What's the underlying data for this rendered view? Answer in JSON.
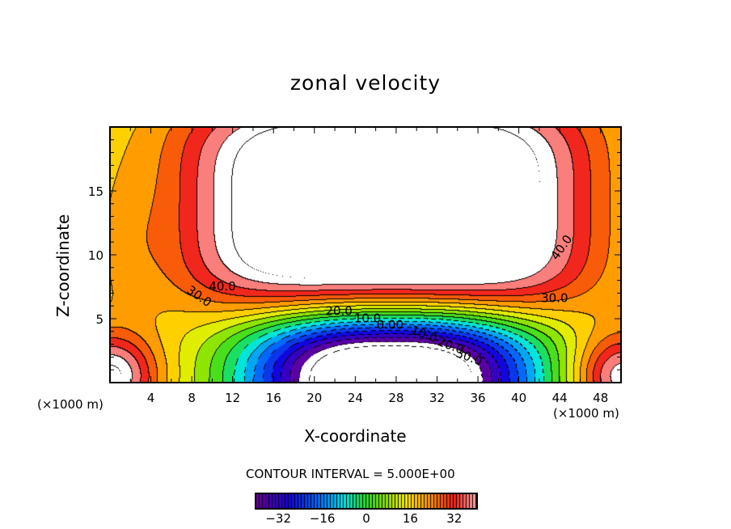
{
  "chart_data": {
    "type": "heatmap",
    "subtype": "filled-contour",
    "title": "zonal velocity",
    "xlabel": "X-coordinate",
    "ylabel": "Z-coordinate",
    "x_unit": "(×1000 m)",
    "z_unit": "(×1000 m)",
    "xlim": [
      0,
      50
    ],
    "ylim": [
      0,
      20
    ],
    "xticks": [
      4,
      8,
      12,
      16,
      20,
      24,
      28,
      32,
      36,
      40,
      44,
      48
    ],
    "xtick_labels": [
      "4",
      "8",
      "12",
      "16",
      "20",
      "24",
      "28",
      "32",
      "36",
      "40",
      "44",
      "48"
    ],
    "yticks": [
      5,
      10,
      15
    ],
    "ytick_labels": [
      "5",
      "10",
      "15"
    ],
    "contour_interval_text": "CONTOUR INTERVAL = 5.000E+00",
    "contour_interval": 5,
    "color_range": [
      -40,
      40
    ],
    "colorbar_ticks": [
      -32,
      -16,
      0,
      16,
      32
    ],
    "colorbar_labels": [
      "−32",
      "−16",
      "0",
      "16",
      "32"
    ],
    "contour_labels": [
      {
        "text": "40.0",
        "x": 11.0,
        "z": 7.2
      },
      {
        "text": "30.0",
        "x": 8.5,
        "z": 6.5
      },
      {
        "text": "20.0",
        "x": 22.4,
        "z": 5.3
      },
      {
        "text": "10.0",
        "x": 25.2,
        "z": 4.7
      },
      {
        "text": "0.00",
        "x": 27.4,
        "z": 4.2
      },
      {
        "text": "10.0",
        "x": 30.6,
        "z": 3.5
      },
      {
        "text": "20.0",
        "x": 33.2,
        "z": 2.6
      },
      {
        "text": "30.0",
        "x": 35.0,
        "z": 1.7
      },
      {
        "text": "30.0",
        "x": 43.5,
        "z": 6.3
      },
      {
        "text": "40.0",
        "x": 44.5,
        "z": 10.4
      }
    ]
  }
}
